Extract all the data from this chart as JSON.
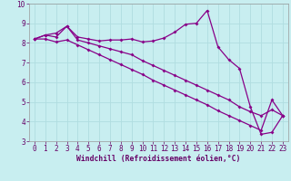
{
  "xlabel": "Windchill (Refroidissement éolien,°C)",
  "bg_color": "#c8eef0",
  "grid_color": "#b0dde0",
  "line_color": "#880088",
  "axis_color": "#660066",
  "xlim": [
    -0.5,
    23.5
  ],
  "ylim": [
    3,
    10
  ],
  "xticks": [
    0,
    1,
    2,
    3,
    4,
    5,
    6,
    7,
    8,
    9,
    10,
    11,
    12,
    13,
    14,
    15,
    16,
    17,
    18,
    19,
    20,
    21,
    22,
    23
  ],
  "yticks": [
    3,
    4,
    5,
    6,
    7,
    8,
    9,
    10
  ],
  "line1_x": [
    0,
    1,
    2,
    3,
    4,
    5,
    6,
    7,
    8,
    9,
    10,
    11,
    12,
    13,
    14,
    15,
    16,
    17,
    18,
    19,
    20,
    21,
    22,
    23
  ],
  "line1_y": [
    8.2,
    8.4,
    8.5,
    8.85,
    8.3,
    8.2,
    8.1,
    8.15,
    8.15,
    8.2,
    8.05,
    8.1,
    8.25,
    8.55,
    8.95,
    9.0,
    9.65,
    7.8,
    7.15,
    6.7,
    4.75,
    3.35,
    3.45,
    4.3
  ],
  "line2_x": [
    0,
    1,
    2,
    3,
    4,
    5,
    6,
    7,
    8,
    9,
    10,
    11,
    12,
    13,
    14,
    15,
    16,
    17,
    18,
    19,
    20,
    21,
    22,
    23
  ],
  "line2_y": [
    8.2,
    8.4,
    8.3,
    8.85,
    8.15,
    8.0,
    7.85,
    7.7,
    7.55,
    7.4,
    7.1,
    6.85,
    6.6,
    6.35,
    6.1,
    5.85,
    5.6,
    5.35,
    5.1,
    4.75,
    4.5,
    4.3,
    4.6,
    4.3
  ],
  "line3_x": [
    0,
    1,
    2,
    3,
    4,
    5,
    6,
    7,
    8,
    9,
    10,
    11,
    12,
    13,
    14,
    15,
    16,
    17,
    18,
    19,
    20,
    21,
    22,
    23
  ],
  "line3_y": [
    8.2,
    8.2,
    8.05,
    8.15,
    7.9,
    7.65,
    7.4,
    7.15,
    6.9,
    6.65,
    6.4,
    6.1,
    5.85,
    5.6,
    5.35,
    5.1,
    4.85,
    4.55,
    4.3,
    4.05,
    3.8,
    3.55,
    5.1,
    4.3
  ],
  "tick_fontsize": 5.5,
  "xlabel_fontsize": 5.8
}
